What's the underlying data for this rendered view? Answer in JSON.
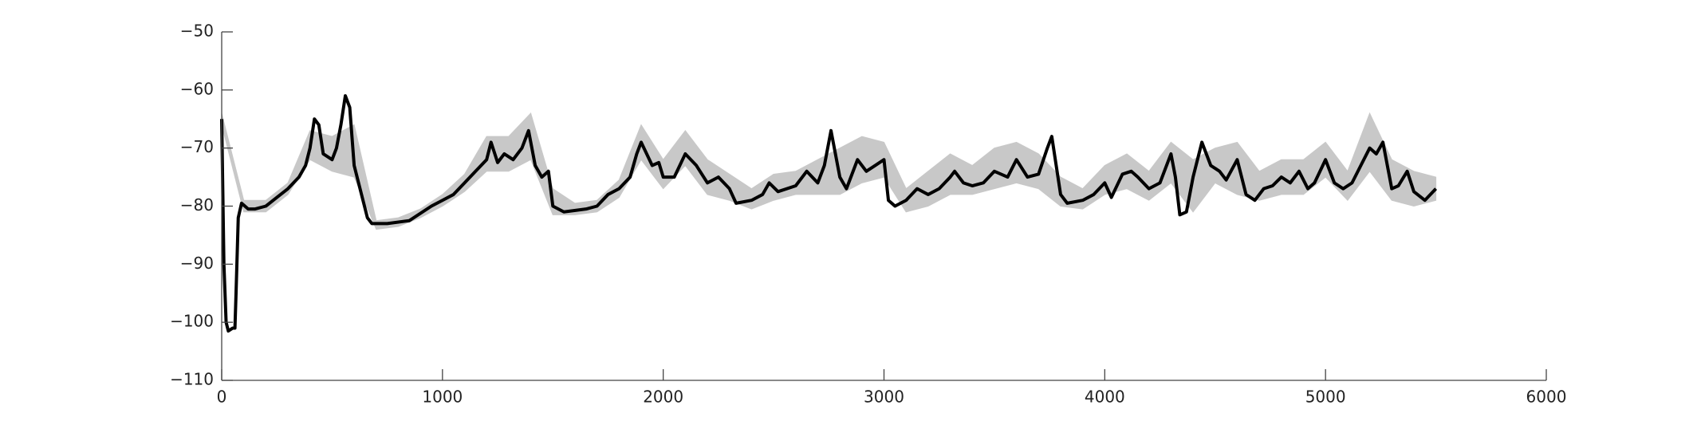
{
  "chart_data": {
    "type": "line",
    "x": [
      0,
      10,
      20,
      30,
      50,
      60,
      65,
      75,
      90,
      120,
      150,
      200,
      250,
      300,
      350,
      380,
      400,
      420,
      440,
      460,
      500,
      520,
      540,
      560,
      580,
      600,
      640,
      660,
      680,
      750,
      850,
      950,
      1000,
      1050,
      1100,
      1150,
      1200,
      1220,
      1250,
      1280,
      1320,
      1360,
      1390,
      1420,
      1450,
      1480,
      1500,
      1550,
      1650,
      1700,
      1750,
      1800,
      1850,
      1880,
      1900,
      1950,
      1980,
      2000,
      2050,
      2100,
      2150,
      2200,
      2250,
      2300,
      2330,
      2400,
      2450,
      2480,
      2520,
      2600,
      2650,
      2700,
      2730,
      2760,
      2800,
      2830,
      2880,
      2920,
      2960,
      3000,
      3020,
      3050,
      3100,
      3150,
      3200,
      3250,
      3300,
      3320,
      3360,
      3400,
      3450,
      3500,
      3560,
      3600,
      3650,
      3700,
      3740,
      3760,
      3800,
      3830,
      3900,
      3950,
      4000,
      4030,
      4080,
      4120,
      4150,
      4200,
      4250,
      4300,
      4320,
      4340,
      4370,
      4400,
      4440,
      4480,
      4520,
      4550,
      4600,
      4640,
      4680,
      4720,
      4760,
      4800,
      4840,
      4880,
      4920,
      4950,
      5000,
      5040,
      5080,
      5120,
      5160,
      5200,
      5230,
      5260,
      5300,
      5330,
      5370,
      5400,
      5450,
      5500
    ],
    "series": [
      {
        "color": "#000000",
        "values": [
          -65,
          -90,
          -100,
          -101.5,
          -101,
          -101,
          -95,
          -82,
          -79.5,
          -80.5,
          -80.5,
          -80,
          -78.5,
          -77,
          -75,
          -73,
          -70,
          -65,
          -66,
          -71,
          -72,
          -70,
          -66,
          -61,
          -63,
          -73,
          -79,
          -82,
          -83,
          -83,
          -82.5,
          -80,
          -79,
          -78,
          -76,
          -74,
          -72,
          -69,
          -72.5,
          -71,
          -72,
          -70,
          -67,
          -73,
          -75,
          -74,
          -80,
          -81,
          -80.5,
          -80,
          -78,
          -77,
          -75,
          -71,
          -69,
          -73,
          -72.5,
          -75,
          -75,
          -71,
          -73,
          -76,
          -75,
          -77,
          -79.5,
          -79,
          -78,
          -76,
          -77.5,
          -76.5,
          -74,
          -76,
          -73,
          -67,
          -75,
          -77,
          -72,
          -74,
          -73,
          -72,
          -79,
          -80,
          -79,
          -77,
          -78,
          -77,
          -75,
          -74,
          -76,
          -76.5,
          -76,
          -74,
          -75,
          -72,
          -75,
          -74.5,
          -70,
          -68,
          -78,
          -79.5,
          -79,
          -78,
          -76,
          -78.5,
          -74.5,
          -74,
          -75,
          -77,
          -76,
          -71,
          -75,
          -81.5,
          -81,
          -75,
          -69,
          -73,
          -74,
          -75.5,
          -72,
          -78,
          -79,
          -77,
          -76.5,
          -75,
          -76,
          -74,
          -77,
          -76,
          -72,
          -76,
          -77,
          -76,
          -73,
          -70,
          -71,
          -69,
          -77,
          -76.5,
          -74,
          -77.5,
          -79,
          -77
        ]
      }
    ],
    "band": {
      "color": "#c8c8c8",
      "x": [
        0,
        100,
        200,
        300,
        400,
        500,
        600,
        700,
        800,
        900,
        1000,
        1100,
        1200,
        1300,
        1400,
        1500,
        1600,
        1700,
        1800,
        1900,
        2000,
        2100,
        2200,
        2300,
        2400,
        2500,
        2600,
        2700,
        2800,
        2900,
        3000,
        3100,
        3200,
        3300,
        3400,
        3500,
        3600,
        3700,
        3800,
        3900,
        4000,
        4100,
        4200,
        4300,
        4400,
        4500,
        4600,
        4700,
        4800,
        4900,
        5000,
        5100,
        5200,
        5300,
        5400,
        5500
      ],
      "upper": [
        -64,
        -79,
        -79,
        -76,
        -67,
        -68,
        -66,
        -82.5,
        -82,
        -80.5,
        -78,
        -74.5,
        -68,
        -68,
        -64,
        -77,
        -79.5,
        -79,
        -75.5,
        -66,
        -72,
        -67,
        -72,
        -74.5,
        -77,
        -74.5,
        -74,
        -72,
        -70,
        -68,
        -69,
        -77,
        -74,
        -71,
        -73,
        -70,
        -69,
        -71,
        -75,
        -77,
        -73,
        -71,
        -74,
        -69,
        -72,
        -70,
        -69,
        -74,
        -72,
        -72,
        -69,
        -74,
        -64,
        -72,
        -74,
        -75
      ],
      "lower": [
        -66,
        -81,
        -81,
        -78,
        -72,
        -74,
        -75,
        -84,
        -83.5,
        -82,
        -80,
        -77.5,
        -74,
        -74,
        -72,
        -81.5,
        -81.5,
        -81,
        -78.5,
        -72,
        -77,
        -73,
        -78,
        -79,
        -80.5,
        -79,
        -78,
        -78,
        -78,
        -76,
        -75,
        -81,
        -80,
        -78,
        -78,
        -77,
        -76,
        -77,
        -80,
        -80.5,
        -78,
        -77,
        -79,
        -76,
        -81,
        -76,
        -78,
        -79,
        -78,
        -78,
        -75,
        -79,
        -74,
        -79,
        -80,
        -79
      ]
    },
    "xlim": [
      0,
      6000
    ],
    "xticks": [
      0,
      1000,
      2000,
      3000,
      4000,
      5000,
      6000
    ],
    "ylim": [
      -110,
      -50
    ],
    "yticks": [
      {
        "value": -110,
        "label": "−110"
      },
      {
        "value": -100,
        "label": "−100"
      },
      {
        "value": -90,
        "label": "−90"
      },
      {
        "value": -80,
        "label": "−80"
      },
      {
        "value": -70,
        "label": "−70"
      },
      {
        "value": -60,
        "label": "−60"
      },
      {
        "value": -50,
        "label": "−50"
      }
    ],
    "grid": false
  }
}
